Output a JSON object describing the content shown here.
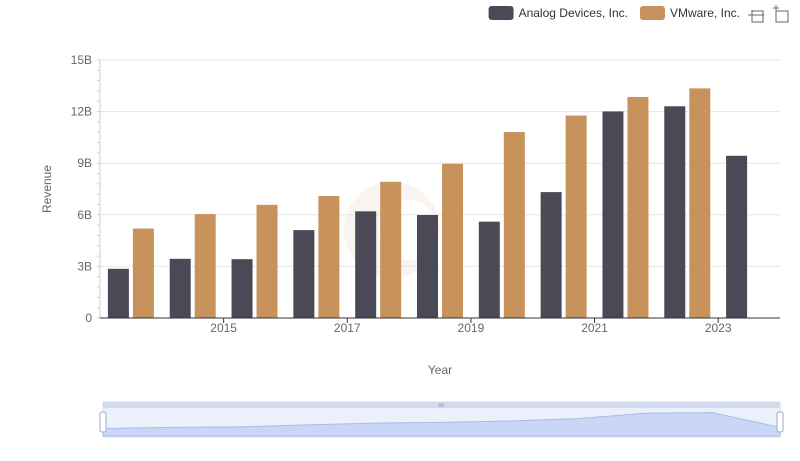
{
  "chart_data": {
    "type": "bar",
    "x": [
      2014,
      2015,
      2016,
      2017,
      2018,
      2019,
      2020,
      2021,
      2022,
      2023,
      2024
    ],
    "x_tick_labels": [
      "2015",
      "2017",
      "2019",
      "2021",
      "2023"
    ],
    "x_tick_values": [
      2015,
      2017,
      2019,
      2021,
      2023
    ],
    "xlabel": "Year",
    "ylabel": "Revenue",
    "ylim": [
      0,
      15
    ],
    "y_ticks": [
      0,
      3,
      6,
      9,
      12,
      15
    ],
    "y_tick_labels": [
      "0",
      "3B",
      "6B",
      "9B",
      "12B",
      "15B"
    ],
    "grid": true,
    "legend_position": "top-right",
    "series": [
      {
        "name": "Analog Devices, Inc.",
        "color": "#4a4955",
        "values": [
          2.86,
          3.44,
          3.42,
          5.11,
          6.2,
          5.99,
          5.6,
          7.32,
          12.01,
          12.31,
          9.43
        ]
      },
      {
        "name": "VMware, Inc.",
        "color": "#c8925d",
        "values": [
          5.2,
          6.04,
          6.58,
          7.09,
          7.92,
          8.97,
          10.81,
          11.77,
          12.85,
          13.35,
          null
        ]
      }
    ]
  },
  "toolbox": {
    "zoom_icon": "zoom-select-icon",
    "restore_icon": "zoom-reset-icon"
  },
  "datazoom": {
    "range_start": 0,
    "range_end": 100
  }
}
